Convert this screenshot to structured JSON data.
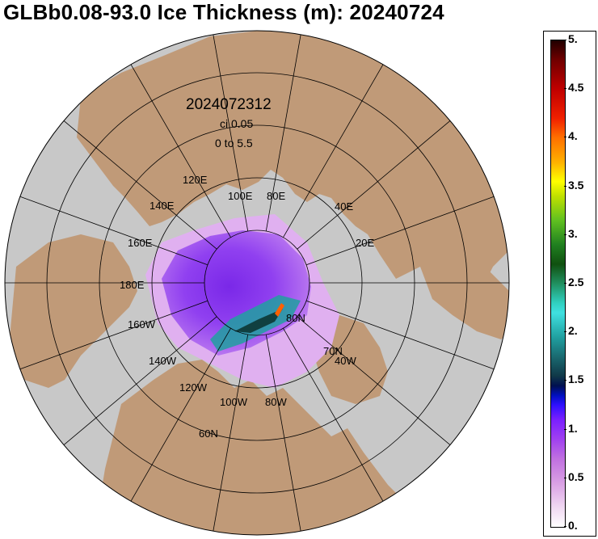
{
  "title": "GLBb0.08-93.0 Ice Thickness (m): 20240724",
  "stamp": {
    "datetime": "2024072312",
    "ci": "ci 0.05",
    "range": "0 to 5.5"
  },
  "longitude_labels": {
    "e120": "120E",
    "e140": "140E",
    "e100": "100E",
    "e80": "80E",
    "e160": "160E",
    "e40": "40E",
    "e180": "180E",
    "e20": "20E",
    "w160": "160W",
    "w140": "140W",
    "w120": "120W",
    "w100": "100W",
    "w80": "80W",
    "w40": "40W"
  },
  "latitude_labels": {
    "n80": "80N",
    "n70": "70N",
    "n60": "60N"
  },
  "colorbar": {
    "units": "m",
    "min": 0,
    "max": 5,
    "ticks": [
      {
        "label": "5.",
        "value": 5.0
      },
      {
        "label": "4.5",
        "value": 4.5
      },
      {
        "label": "4.",
        "value": 4.0
      },
      {
        "label": "3.5",
        "value": 3.5
      },
      {
        "label": "3.",
        "value": 3.0
      },
      {
        "label": "2.5",
        "value": 2.5
      },
      {
        "label": "2.",
        "value": 2.0
      },
      {
        "label": "1.5",
        "value": 1.5
      },
      {
        "label": "1.",
        "value": 1.0
      },
      {
        "label": "0.5",
        "value": 0.5
      },
      {
        "label": "0.",
        "value": 0.0
      }
    ]
  },
  "colors": {
    "ocean": "#c8c8c8",
    "land": "#c09a78",
    "ice_thin": "#e0a8f0",
    "ice_mid": "#8a30f0",
    "ice_thick": "#20a0a0"
  }
}
